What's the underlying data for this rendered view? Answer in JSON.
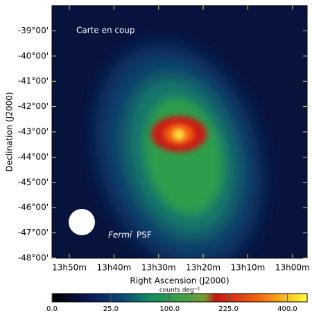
{
  "chart_data": {
    "type": "image",
    "annotations": [
      "Carte en coup",
      "Fermi",
      "PSF"
    ],
    "xlabel": "Right Ascension (J2000)",
    "ylabel": "Declination (J2000)",
    "xlim": [
      53.9,
      -3.3
    ],
    "xticks": [
      {
        "value": 50,
        "label": "13h50m"
      },
      {
        "value": 40,
        "label": "13h40m"
      },
      {
        "value": 30,
        "label": "13h30m"
      },
      {
        "value": 20,
        "label": "13h20m"
      },
      {
        "value": 10,
        "label": "13h10m"
      },
      {
        "value": 0,
        "label": "13h00m"
      }
    ],
    "ylim": [
      -48,
      -38
    ],
    "yticks": [
      {
        "value": -39,
        "label": "-39°00'"
      },
      {
        "value": -40,
        "label": "-40°00'"
      },
      {
        "value": -41,
        "label": "-41°00'"
      },
      {
        "value": -42,
        "label": "-42°00'"
      },
      {
        "value": -43,
        "label": "-43°00'"
      },
      {
        "value": -44,
        "label": "-44°00'"
      },
      {
        "value": -45,
        "label": "-45°00'"
      },
      {
        "value": -46,
        "label": "-46°00'"
      },
      {
        "value": -47,
        "label": "-47°00'"
      },
      {
        "value": -48,
        "label": "-48°00'"
      }
    ],
    "colorbar": {
      "label": "counts deg⁻²",
      "scale": "sqrt",
      "lim": [
        0,
        470
      ],
      "ticks": [
        {
          "value": 0,
          "label": "0.0"
        },
        {
          "value": 25,
          "label": "25.0"
        },
        {
          "value": 100,
          "label": "100.0"
        },
        {
          "value": 225,
          "label": "225.0"
        },
        {
          "value": 400,
          "label": "400.0"
        }
      ]
    }
  }
}
